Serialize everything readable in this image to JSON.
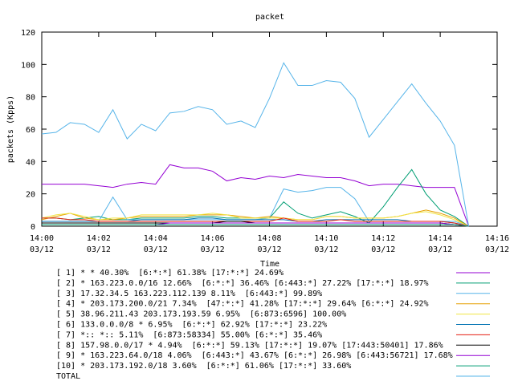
{
  "chart_data": {
    "type": "line",
    "title": "packet",
    "xlabel": "Time",
    "ylabel": "packets (Kpps)",
    "x": [
      0,
      0.5,
      1,
      1.5,
      2,
      2.5,
      3,
      3.5,
      4,
      4.5,
      5,
      5.5,
      6,
      6.5,
      7,
      7.5,
      8,
      8.5,
      9,
      9.5,
      10,
      10.5,
      11,
      11.5,
      12,
      12.5,
      13,
      13.5,
      14,
      14.5,
      15
    ],
    "xlim": [
      0,
      16
    ],
    "xticks": [
      {
        "value": 0,
        "label": "14:00\n03/12"
      },
      {
        "value": 2,
        "label": "14:02\n03/12"
      },
      {
        "value": 4,
        "label": "14:04\n03/12"
      },
      {
        "value": 6,
        "label": "14:06\n03/12"
      },
      {
        "value": 8,
        "label": "14:08\n03/12"
      },
      {
        "value": 10,
        "label": "14:10\n03/12"
      },
      {
        "value": 12,
        "label": "14:12\n03/12"
      },
      {
        "value": 14,
        "label": "14:14\n03/12"
      },
      {
        "value": 16,
        "label": "14:16\n03/12"
      }
    ],
    "ylim": [
      0,
      120
    ],
    "yticks": [
      0,
      20,
      40,
      60,
      80,
      100,
      120
    ],
    "grid": false,
    "legend": "bottom",
    "series": [
      {
        "name": "[ 1] * * 40.30%  [6:*:*] 61.38% [17:*:*] 24.69%",
        "color": "#9400d3",
        "values": [
          26,
          26,
          26,
          26,
          25,
          24,
          26,
          27,
          26,
          38,
          36,
          36,
          34,
          28,
          30,
          29,
          31,
          30,
          32,
          31,
          30,
          30,
          28,
          25,
          26,
          26,
          25,
          24,
          24,
          24,
          0
        ]
      },
      {
        "name": "[ 2] * 163.223.0.0/16 12.66%  [6:*:*] 36.46% [6:443:*] 27.22% [17:*:*] 18.97%",
        "color": "#009e73",
        "values": [
          5,
          5,
          4,
          5,
          6,
          4,
          4,
          5,
          5,
          5,
          5,
          6,
          6,
          5,
          5,
          5,
          5,
          15,
          8,
          5,
          7,
          9,
          6,
          2,
          12,
          24,
          35,
          20,
          10,
          6,
          0
        ]
      },
      {
        "name": "[ 3] 17.32.34.5 163.223.112.139 8.11%  [6:443:*] 99.89%",
        "color": "#56b4e9",
        "values": [
          3,
          3,
          3,
          3,
          3,
          18,
          4,
          4,
          4,
          4,
          4,
          4,
          4,
          4,
          4,
          4,
          5,
          23,
          21,
          22,
          24,
          24,
          17,
          3,
          3,
          3,
          3,
          3,
          3,
          3,
          0
        ]
      },
      {
        "name": "[ 4] * 203.173.200.0/21 7.34%  [47:*:*] 41.28% [17:*:*] 29.64% [6:*:*] 24.92%",
        "color": "#e69f00",
        "values": [
          4,
          6,
          8,
          5,
          4,
          4,
          5,
          6,
          6,
          6,
          6,
          7,
          7,
          7,
          6,
          5,
          6,
          5,
          4,
          4,
          6,
          6,
          5,
          5,
          5,
          6,
          8,
          10,
          8,
          5,
          0
        ]
      },
      {
        "name": "[ 5] 38.96.211.43 203.173.193.59 6.95%  [6:873:6596] 100.00%",
        "color": "#f0e442",
        "values": [
          5,
          7,
          8,
          6,
          4,
          5,
          5,
          7,
          7,
          7,
          7,
          7,
          8,
          7,
          5,
          5,
          5,
          5,
          4,
          4,
          6,
          6,
          5,
          5,
          5,
          6,
          8,
          9,
          7,
          4,
          0
        ]
      },
      {
        "name": "[ 6] 133.0.0.0/8 * 6.95%  [6:*:*] 62.92% [17:*:*] 23.22%",
        "color": "#0072b2",
        "values": [
          3,
          3,
          3,
          3,
          3,
          3,
          3,
          4,
          4,
          4,
          4,
          5,
          5,
          4,
          4,
          4,
          4,
          4,
          3,
          3,
          4,
          4,
          4,
          4,
          4,
          4,
          3,
          3,
          3,
          2,
          0
        ]
      },
      {
        "name": "[ 7] *:: *:: 5.11%  [6:873:58334] 55.00% [6:*:*] 35.46%",
        "color": "#e51e10",
        "values": [
          5,
          5,
          4,
          4,
          3,
          3,
          3,
          3,
          3,
          3,
          3,
          3,
          3,
          3,
          3,
          3,
          3,
          5,
          3,
          3,
          3,
          4,
          3,
          3,
          3,
          3,
          3,
          3,
          3,
          2,
          0
        ]
      },
      {
        "name": "[ 8] 157.98.0.0/17 * 4.94%  [6:*:*] 59.13% [17:*:*] 19.07% [17:443:50401] 17.86%",
        "color": "#000000",
        "values": [
          2,
          2,
          2,
          2,
          2,
          2,
          2,
          2,
          2,
          2,
          2,
          2,
          2,
          3,
          3,
          2,
          2,
          2,
          2,
          2,
          2,
          2,
          2,
          2,
          2,
          2,
          2,
          2,
          2,
          1,
          0
        ]
      },
      {
        "name": "[ 9] * 163.223.64.0/18 4.06%  [6:443:*] 43.67% [6:*:*] 26.98% [6:443:56721] 17.68%",
        "color": "#9400d3",
        "values": [
          1,
          1,
          1,
          1,
          1,
          1,
          1,
          1,
          1,
          2,
          2,
          2,
          2,
          2,
          2,
          2,
          2,
          2,
          2,
          2,
          2,
          2,
          2,
          2,
          2,
          2,
          2,
          2,
          2,
          1,
          0
        ]
      },
      {
        "name": "[10] * 203.173.192.0/18 3.60%  [6:*:*] 61.06% [17:*:*] 33.60%",
        "color": "#009e73",
        "values": [
          1,
          1,
          1,
          1,
          1,
          1,
          1,
          1,
          1,
          1,
          1,
          1,
          1,
          1,
          1,
          1,
          1,
          1,
          1,
          1,
          1,
          1,
          1,
          1,
          1,
          1,
          1,
          1,
          1,
          1,
          0
        ]
      },
      {
        "name": "TOTAL",
        "color": "#56b4e9",
        "values": [
          57,
          58,
          64,
          63,
          58,
          72,
          54,
          63,
          59,
          70,
          71,
          74,
          72,
          63,
          65,
          61,
          79,
          101,
          87,
          87,
          90,
          89,
          79,
          55,
          66,
          77,
          88,
          76,
          65,
          50,
          0
        ]
      }
    ]
  }
}
